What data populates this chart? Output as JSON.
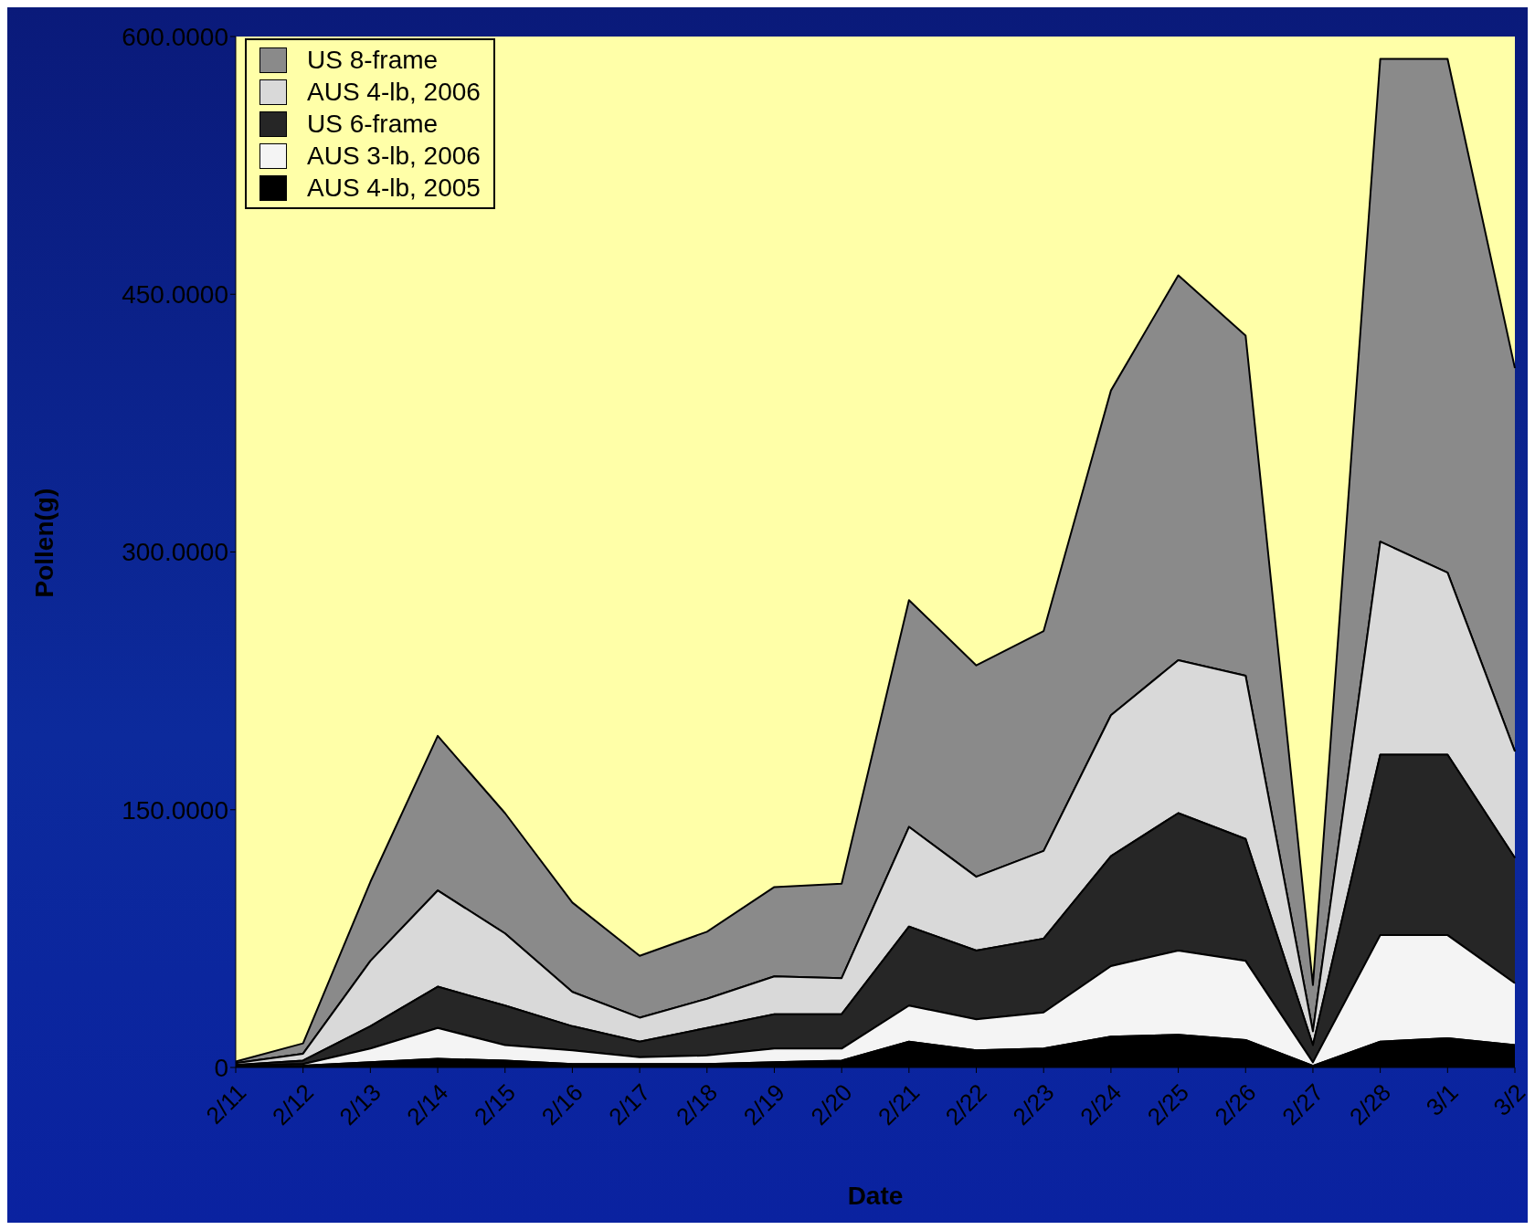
{
  "chart_data": {
    "type": "area",
    "stacked": true,
    "xlabel": "Date",
    "ylabel": "Pollen(g)",
    "categories": [
      "2/11",
      "2/12",
      "2/13",
      "2/14",
      "2/15",
      "2/16",
      "2/17",
      "2/18",
      "2/19",
      "2/20",
      "2/21",
      "2/22",
      "2/23",
      "2/24",
      "2/25",
      "2/26",
      "2/27",
      "2/28",
      "3/1",
      "3/2"
    ],
    "series": [
      {
        "name": "AUS 4-lb, 2005",
        "color": "#000000",
        "values": [
          0.5,
          1,
          3,
          5,
          4,
          2,
          2,
          2,
          3,
          4,
          15,
          10,
          11,
          18,
          19,
          16,
          1,
          15,
          17,
          13
        ]
      },
      {
        "name": "AUS 3-lb, 2006",
        "color": "#f4f4f4",
        "values": [
          0.5,
          1,
          8,
          18,
          9,
          8,
          4,
          5,
          8,
          7,
          21,
          18,
          21,
          41,
          49,
          46,
          2,
          62,
          60,
          36
        ]
      },
      {
        "name": "US 6-frame",
        "color": "#262626",
        "values": [
          0.5,
          2,
          13,
          24,
          23,
          14,
          9,
          16,
          20,
          20,
          46,
          40,
          43,
          64,
          80,
          71,
          10,
          105,
          105,
          73
        ]
      },
      {
        "name": "AUS 4-lb, 2006",
        "color": "#d9d9d9",
        "values": [
          1,
          4,
          38,
          56,
          42,
          20,
          14,
          17,
          22,
          21,
          58,
          43,
          51,
          82,
          89,
          95,
          8,
          124,
          106,
          62
        ]
      },
      {
        "name": "US 8-frame",
        "color": "#8a8a8a",
        "values": [
          1,
          6,
          46,
          90,
          70,
          52,
          36,
          39,
          52,
          55,
          132,
          123,
          128,
          189,
          224,
          198,
          27,
          281,
          299,
          223
        ]
      }
    ],
    "ylim": [
      0,
      600
    ],
    "yticks": [
      {
        "value": 0,
        "label": "0"
      },
      {
        "value": 150,
        "label": "150.0000"
      },
      {
        "value": 300,
        "label": "300.0000"
      },
      {
        "value": 450,
        "label": "450.0000"
      },
      {
        "value": 600,
        "label": "600.0000"
      }
    ],
    "legend": "top left"
  }
}
